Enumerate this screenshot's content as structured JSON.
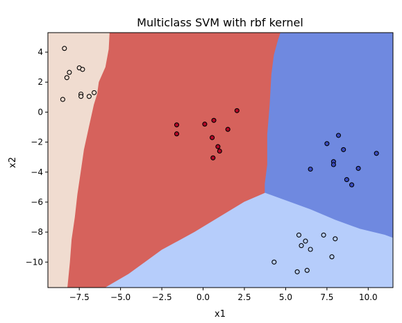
{
  "chart_data": {
    "type": "scatter",
    "title": "Multiclass SVM with rbf kernel",
    "xlabel": "x1",
    "ylabel": "x2",
    "xlim": [
      -9.4,
      11.5
    ],
    "ylim": [
      -11.7,
      5.3
    ],
    "x_ticks": [
      -7.5,
      -5.0,
      -2.5,
      0.0,
      2.5,
      5.0,
      7.5,
      10.0
    ],
    "x_tick_labels": [
      "−7.5",
      "−5.0",
      "−2.5",
      "0.0",
      "2.5",
      "5.0",
      "7.5",
      "10.0"
    ],
    "y_ticks": [
      4,
      2,
      0,
      -2,
      -4,
      -6,
      -8,
      -10
    ],
    "y_tick_labels": [
      "4",
      "2",
      "0",
      "−2",
      "−4",
      "−6",
      "−8",
      "−10"
    ],
    "grid": false,
    "class_colors": [
      "#f0dcd0",
      "#d6625c",
      "#6f89e0",
      "#b6cdfb"
    ],
    "point_colors": [
      "#f0dcd0",
      "#b40426",
      "#3b4cc0",
      "#b6cdfb"
    ],
    "decision_regions": [
      {
        "class": 0,
        "polygon": [
          [
            -9.4,
            5.3
          ],
          [
            -5.65,
            5.3
          ],
          [
            -5.7,
            4.2
          ],
          [
            -5.9,
            3.0
          ],
          [
            -6.3,
            2.0
          ],
          [
            -6.4,
            1.2
          ],
          [
            -6.6,
            0.5
          ],
          [
            -6.9,
            -1.0
          ],
          [
            -7.2,
            -2.5
          ],
          [
            -7.4,
            -4.0
          ],
          [
            -7.6,
            -5.5
          ],
          [
            -7.75,
            -7.0
          ],
          [
            -7.95,
            -8.5
          ],
          [
            -8.05,
            -10.0
          ],
          [
            -8.2,
            -11.7
          ],
          [
            -9.4,
            -11.7
          ]
        ]
      },
      {
        "class": 1,
        "polygon": [
          [
            -5.65,
            5.3
          ],
          [
            4.7,
            5.3
          ],
          [
            4.55,
            4.8
          ],
          [
            4.3,
            3.8
          ],
          [
            4.15,
            2.5
          ],
          [
            4.05,
            0.5
          ],
          [
            3.9,
            -1.5
          ],
          [
            3.9,
            -3.5
          ],
          [
            3.75,
            -4.8
          ],
          [
            3.75,
            -5.4
          ],
          [
            2.5,
            -6.0
          ],
          [
            1.0,
            -7.0
          ],
          [
            -0.5,
            -8.0
          ],
          [
            -1.5,
            -8.6
          ],
          [
            -2.5,
            -9.2
          ],
          [
            -3.5,
            -10.0
          ],
          [
            -4.5,
            -10.8
          ],
          [
            -5.9,
            -11.7
          ],
          [
            -8.2,
            -11.7
          ],
          [
            -8.05,
            -10.0
          ],
          [
            -7.95,
            -8.5
          ],
          [
            -7.75,
            -7.0
          ],
          [
            -7.6,
            -5.5
          ],
          [
            -7.4,
            -4.0
          ],
          [
            -7.2,
            -2.5
          ],
          [
            -6.9,
            -1.0
          ],
          [
            -6.6,
            0.5
          ],
          [
            -6.4,
            1.2
          ],
          [
            -6.3,
            2.0
          ],
          [
            -5.9,
            3.0
          ],
          [
            -5.7,
            4.2
          ]
        ]
      },
      {
        "class": 2,
        "polygon": [
          [
            4.7,
            5.3
          ],
          [
            11.5,
            5.3
          ],
          [
            11.5,
            -8.4
          ],
          [
            11.0,
            -8.2
          ],
          [
            9.5,
            -7.8
          ],
          [
            8.0,
            -7.2
          ],
          [
            6.5,
            -6.5
          ],
          [
            5.0,
            -5.9
          ],
          [
            3.75,
            -5.4
          ],
          [
            3.75,
            -4.8
          ],
          [
            3.9,
            -3.5
          ],
          [
            3.9,
            -1.5
          ],
          [
            4.05,
            0.5
          ],
          [
            4.15,
            2.5
          ],
          [
            4.3,
            3.8
          ],
          [
            4.55,
            4.8
          ]
        ]
      },
      {
        "class": 3,
        "polygon": [
          [
            3.75,
            -5.4
          ],
          [
            5.0,
            -5.9
          ],
          [
            6.5,
            -6.5
          ],
          [
            8.0,
            -7.2
          ],
          [
            9.5,
            -7.8
          ],
          [
            11.0,
            -8.2
          ],
          [
            11.5,
            -8.4
          ],
          [
            11.5,
            -11.7
          ],
          [
            -5.9,
            -11.7
          ],
          [
            -4.5,
            -10.8
          ],
          [
            -3.5,
            -10.0
          ],
          [
            -2.5,
            -9.2
          ],
          [
            -1.5,
            -8.6
          ],
          [
            -0.5,
            -8.0
          ],
          [
            1.0,
            -7.0
          ],
          [
            2.5,
            -6.0
          ]
        ]
      }
    ],
    "series": [
      {
        "class": 0,
        "x": [
          -8.4,
          -8.1,
          -8.25,
          -8.5,
          -7.5,
          -7.3,
          -7.4,
          -7.4,
          -6.9,
          -6.6
        ],
        "y": [
          4.25,
          2.65,
          2.3,
          0.85,
          2.95,
          2.85,
          1.2,
          1.05,
          1.05,
          1.3
        ]
      },
      {
        "class": 1,
        "x": [
          -1.6,
          -1.6,
          0.1,
          0.65,
          0.55,
          0.9,
          1.0,
          1.5,
          2.05,
          0.6
        ],
        "y": [
          -0.85,
          -1.45,
          -0.8,
          -0.55,
          -1.7,
          -2.3,
          -2.6,
          -1.15,
          0.1,
          -3.05
        ]
      },
      {
        "class": 2,
        "x": [
          6.5,
          7.5,
          7.9,
          7.9,
          8.2,
          8.5,
          8.7,
          9.0,
          9.4,
          10.5
        ],
        "y": [
          -3.8,
          -2.1,
          -3.3,
          -3.5,
          -1.55,
          -2.5,
          -4.5,
          -4.85,
          -3.75,
          -2.75
        ]
      },
      {
        "class": 3,
        "x": [
          4.3,
          5.7,
          5.8,
          5.95,
          6.2,
          6.3,
          6.5,
          7.3,
          7.8,
          8.0
        ],
        "y": [
          -10.0,
          -10.65,
          -8.2,
          -8.9,
          -8.6,
          -10.55,
          -9.15,
          -8.2,
          -9.65,
          -8.45
        ]
      }
    ]
  }
}
